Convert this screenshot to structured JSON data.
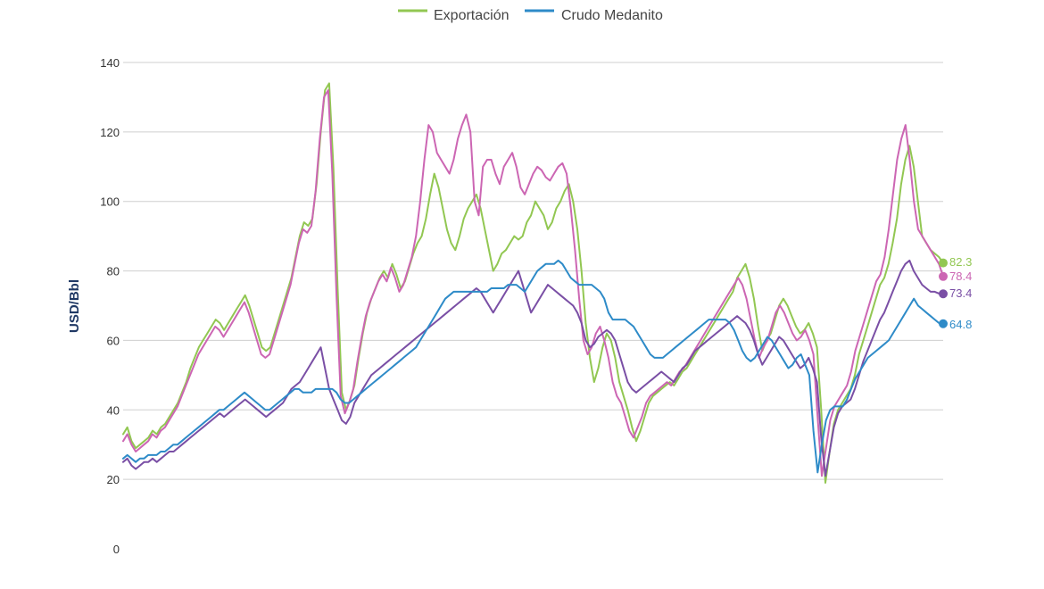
{
  "chart_data": {
    "type": "line",
    "title": "",
    "xlabel": "",
    "ylabel": "USD/Bbl",
    "ylim": [
      0,
      140
    ],
    "yticks": [
      0,
      20,
      40,
      60,
      80,
      100,
      120,
      140
    ],
    "grid": true,
    "legend_position": "top-center",
    "legend": [
      {
        "label": "Exportación",
        "color": "#92c752"
      },
      {
        "label": "Crudo Medanito",
        "color": "#2e8bc8"
      }
    ],
    "series": [
      {
        "name": "Exportación",
        "color": "#92c752",
        "end_label": "82.3",
        "values": [
          33,
          35,
          31,
          29,
          30,
          31,
          32,
          34,
          33,
          35,
          36,
          38,
          40,
          42,
          45,
          48,
          52,
          55,
          58,
          60,
          62,
          64,
          66,
          65,
          63,
          65,
          67,
          69,
          71,
          73,
          70,
          66,
          62,
          58,
          57,
          58,
          62,
          66,
          70,
          74,
          78,
          84,
          90,
          94,
          93,
          95,
          105,
          120,
          132,
          134,
          110,
          75,
          45,
          40,
          43,
          47,
          55,
          62,
          68,
          72,
          75,
          78,
          80,
          78,
          82,
          79,
          75,
          77,
          81,
          85,
          88,
          90,
          95,
          102,
          108,
          104,
          98,
          92,
          88,
          86,
          90,
          95,
          98,
          100,
          102,
          98,
          92,
          86,
          80,
          82,
          85,
          86,
          88,
          90,
          89,
          90,
          94,
          96,
          100,
          98,
          96,
          92,
          94,
          98,
          100,
          103,
          105,
          100,
          92,
          80,
          65,
          55,
          48,
          52,
          58,
          62,
          60,
          55,
          48,
          44,
          40,
          35,
          31,
          34,
          38,
          42,
          44,
          45,
          46,
          47,
          48,
          47,
          49,
          51,
          52,
          54,
          56,
          58,
          60,
          62,
          64,
          66,
          68,
          70,
          72,
          74,
          78,
          80,
          82,
          78,
          72,
          64,
          57,
          60,
          62,
          66,
          70,
          72,
          70,
          67,
          64,
          62,
          63,
          65,
          62,
          58,
          40,
          19,
          28,
          36,
          40,
          42,
          44,
          46,
          50,
          56,
          60,
          64,
          68,
          72,
          76,
          78,
          82,
          88,
          95,
          105,
          112,
          116,
          110,
          100,
          90,
          88,
          86,
          85,
          84,
          82.3
        ]
      },
      {
        "name": "",
        "color": "#cc66b3",
        "end_label": "78.4",
        "values": [
          31,
          33,
          30,
          28,
          29,
          30,
          31,
          33,
          32,
          34,
          35,
          37,
          39,
          41,
          44,
          47,
          50,
          53,
          56,
          58,
          60,
          62,
          64,
          63,
          61,
          63,
          65,
          67,
          69,
          71,
          68,
          64,
          60,
          56,
          55,
          56,
          60,
          64,
          68,
          72,
          76,
          82,
          88,
          92,
          91,
          93,
          103,
          118,
          130,
          132,
          108,
          73,
          44,
          39,
          42,
          46,
          54,
          61,
          67,
          71,
          74,
          77,
          79,
          77,
          81,
          78,
          74,
          76,
          80,
          84,
          90,
          100,
          112,
          122,
          120,
          114,
          112,
          110,
          108,
          112,
          118,
          122,
          125,
          120,
          100,
          96,
          110,
          112,
          112,
          108,
          105,
          110,
          112,
          114,
          110,
          104,
          102,
          105,
          108,
          110,
          109,
          107,
          106,
          108,
          110,
          111,
          108,
          98,
          86,
          72,
          60,
          56,
          58,
          62,
          64,
          60,
          55,
          48,
          44,
          42,
          38,
          34,
          32,
          35,
          38,
          42,
          44,
          45,
          46,
          47,
          48,
          47,
          49,
          51,
          52,
          54,
          56,
          58,
          60,
          62,
          64,
          66,
          68,
          70,
          72,
          74,
          76,
          78,
          76,
          72,
          66,
          60,
          55,
          58,
          60,
          64,
          68,
          70,
          68,
          65,
          62,
          60,
          61,
          63,
          60,
          56,
          38,
          21,
          29,
          37,
          41,
          43,
          45,
          47,
          51,
          57,
          61,
          65,
          69,
          73,
          77,
          79,
          84,
          92,
          102,
          112,
          118,
          122,
          112,
          100,
          92,
          90,
          88,
          86,
          84,
          82,
          78.4
        ]
      },
      {
        "name": "",
        "color": "#7a4fa5",
        "end_label": "73.4",
        "values": [
          25,
          26,
          24,
          23,
          24,
          25,
          25,
          26,
          25,
          26,
          27,
          28,
          28,
          29,
          30,
          31,
          32,
          33,
          34,
          35,
          36,
          37,
          38,
          39,
          38,
          39,
          40,
          41,
          42,
          43,
          42,
          41,
          40,
          39,
          38,
          39,
          40,
          41,
          42,
          44,
          46,
          47,
          48,
          50,
          52,
          54,
          56,
          58,
          52,
          46,
          43,
          40,
          37,
          36,
          38,
          42,
          44,
          46,
          48,
          50,
          51,
          52,
          53,
          54,
          55,
          56,
          57,
          58,
          59,
          60,
          61,
          62,
          63,
          64,
          65,
          66,
          67,
          68,
          69,
          70,
          71,
          72,
          73,
          74,
          75,
          74,
          72,
          70,
          68,
          70,
          72,
          74,
          76,
          78,
          80,
          76,
          72,
          68,
          70,
          72,
          74,
          76,
          75,
          74,
          73,
          72,
          71,
          70,
          68,
          65,
          60,
          58,
          59,
          61,
          62,
          63,
          62,
          60,
          56,
          52,
          48,
          46,
          45,
          46,
          47,
          48,
          49,
          50,
          51,
          50,
          49,
          48,
          50,
          52,
          53,
          55,
          57,
          58,
          59,
          60,
          61,
          62,
          63,
          64,
          65,
          66,
          67,
          66,
          65,
          63,
          60,
          56,
          53,
          55,
          57,
          59,
          61,
          60,
          58,
          56,
          54,
          52,
          53,
          55,
          52,
          48,
          32,
          21,
          28,
          35,
          39,
          41,
          42,
          43,
          46,
          50,
          54,
          57,
          60,
          63,
          66,
          68,
          71,
          74,
          77,
          80,
          82,
          83,
          80,
          78,
          76,
          75,
          74,
          74,
          73.5,
          73.4
        ]
      },
      {
        "name": "Crudo Medanito",
        "color": "#2e8bc8",
        "end_label": "64.8",
        "values": [
          26,
          27,
          26,
          25,
          26,
          26,
          27,
          27,
          27,
          28,
          28,
          29,
          30,
          30,
          31,
          32,
          33,
          34,
          35,
          36,
          37,
          38,
          39,
          40,
          40,
          41,
          42,
          43,
          44,
          45,
          44,
          43,
          42,
          41,
          40,
          40,
          41,
          42,
          43,
          44,
          45,
          46,
          46,
          45,
          45,
          45,
          46,
          46,
          46,
          46,
          46,
          45,
          43,
          42,
          42,
          43,
          44,
          45,
          46,
          47,
          48,
          49,
          50,
          51,
          52,
          53,
          54,
          55,
          56,
          57,
          58,
          60,
          62,
          64,
          66,
          68,
          70,
          72,
          73,
          74,
          74,
          74,
          74,
          74,
          74,
          74,
          74,
          74,
          75,
          75,
          75,
          75,
          76,
          76,
          76,
          75,
          74,
          76,
          78,
          80,
          81,
          82,
          82,
          82,
          83,
          82,
          80,
          78,
          77,
          76,
          76,
          76,
          76,
          75,
          74,
          72,
          68,
          66,
          66,
          66,
          66,
          65,
          64,
          62,
          60,
          58,
          56,
          55,
          55,
          55,
          56,
          57,
          58,
          59,
          60,
          61,
          62,
          63,
          64,
          65,
          66,
          66,
          66,
          66,
          66,
          65,
          63,
          60,
          57,
          55,
          54,
          55,
          57,
          59,
          61,
          60,
          58,
          56,
          54,
          52,
          53,
          55,
          56,
          53,
          50,
          34,
          22,
          30,
          37,
          40,
          41,
          41,
          41,
          43,
          46,
          49,
          51,
          53,
          55,
          56,
          57,
          58,
          59,
          60,
          62,
          64,
          66,
          68,
          70,
          72,
          70,
          69,
          68,
          67,
          66,
          65,
          64.8
        ]
      }
    ]
  }
}
